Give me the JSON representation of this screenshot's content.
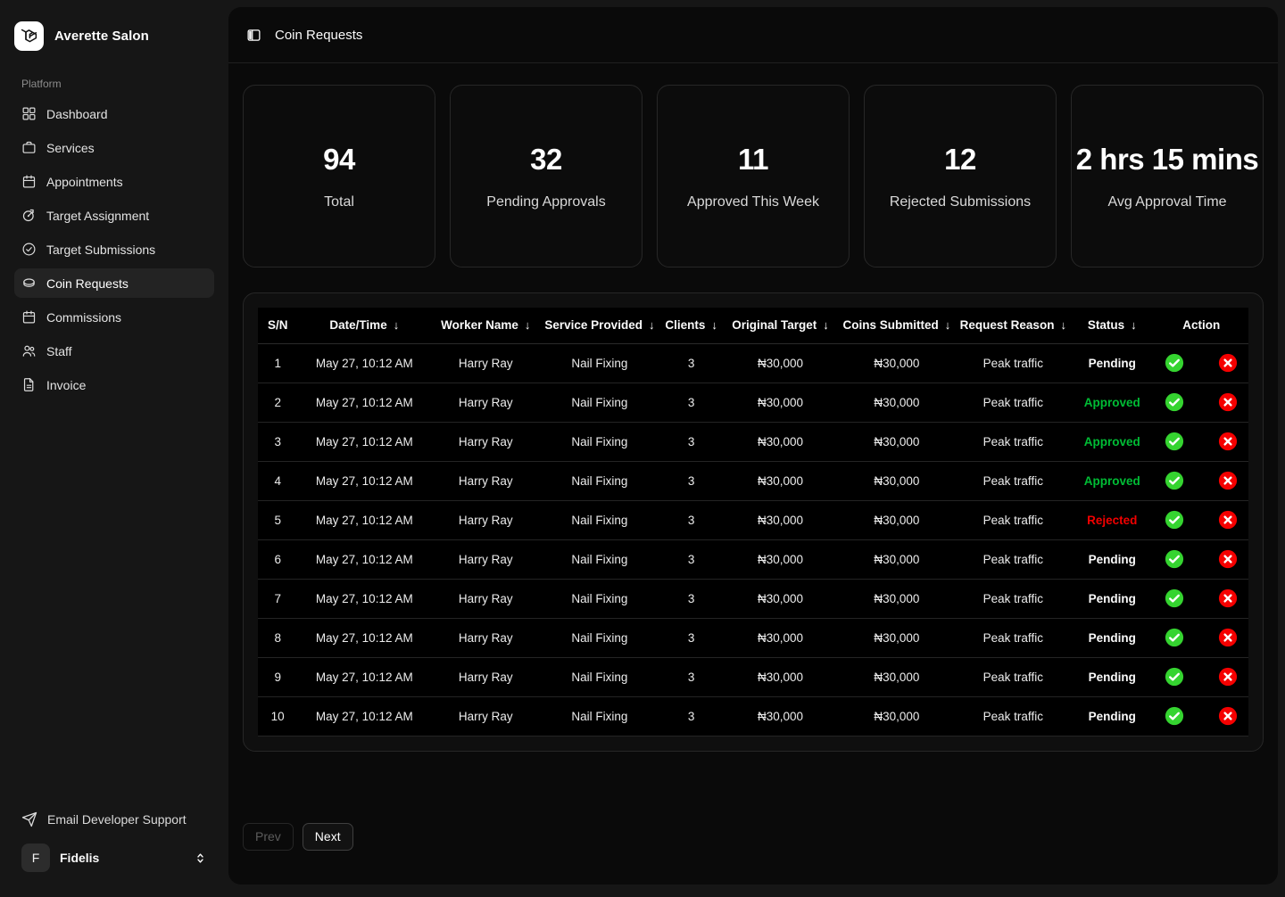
{
  "brand": {
    "name": "Averette Salon"
  },
  "sidebar": {
    "section_label": "Platform",
    "items": [
      {
        "label": "Dashboard",
        "icon": "grid-icon",
        "active": false
      },
      {
        "label": "Services",
        "icon": "briefcase-icon",
        "active": false
      },
      {
        "label": "Appointments",
        "icon": "calendar-icon",
        "active": false
      },
      {
        "label": "Target Assignment",
        "icon": "target-icon",
        "active": false
      },
      {
        "label": "Target Submissions",
        "icon": "circle-check-icon",
        "active": false
      },
      {
        "label": "Coin Requests",
        "icon": "coin-icon",
        "active": true
      },
      {
        "label": "Commissions",
        "icon": "calendar-icon",
        "active": false
      },
      {
        "label": "Staff",
        "icon": "users-icon",
        "active": false
      },
      {
        "label": "Invoice",
        "icon": "file-text-icon",
        "active": false
      }
    ],
    "footer": {
      "support_label": "Email Developer Support",
      "user": {
        "initial": "F",
        "name": "Fidelis"
      }
    }
  },
  "header": {
    "title": "Coin Requests"
  },
  "stats": [
    {
      "value": "94",
      "label": "Total"
    },
    {
      "value": "32",
      "label": "Pending Approvals"
    },
    {
      "value": "11",
      "label": "Approved This Week"
    },
    {
      "value": "12",
      "label": "Rejected Submissions"
    },
    {
      "value": "2 hrs 15 mins",
      "label": "Avg Approval Time"
    }
  ],
  "table": {
    "columns": [
      {
        "key": "sn",
        "label": "S/N",
        "sortable": false
      },
      {
        "key": "datetime",
        "label": "Date/Time",
        "sortable": true
      },
      {
        "key": "worker",
        "label": "Worker Name",
        "sortable": true
      },
      {
        "key": "service",
        "label": "Service Provided",
        "sortable": true
      },
      {
        "key": "clients",
        "label": "Clients",
        "sortable": true
      },
      {
        "key": "original",
        "label": "Original Target",
        "sortable": true
      },
      {
        "key": "coins",
        "label": "Coins Submitted",
        "sortable": true
      },
      {
        "key": "reason",
        "label": "Request Reason",
        "sortable": true
      },
      {
        "key": "status",
        "label": "Status",
        "sortable": true
      },
      {
        "key": "action",
        "label": "Action",
        "sortable": false
      }
    ],
    "rows": [
      {
        "sn": "1",
        "datetime": "May 27, 10:12 AM",
        "worker": "Harry Ray",
        "service": "Nail Fixing",
        "clients": "3",
        "original": "₦30,000",
        "coins": "₦30,000",
        "reason": "Peak traffic",
        "status": "Pending"
      },
      {
        "sn": "2",
        "datetime": "May 27, 10:12 AM",
        "worker": "Harry Ray",
        "service": "Nail Fixing",
        "clients": "3",
        "original": "₦30,000",
        "coins": "₦30,000",
        "reason": "Peak traffic",
        "status": "Approved"
      },
      {
        "sn": "3",
        "datetime": "May 27, 10:12 AM",
        "worker": "Harry Ray",
        "service": "Nail Fixing",
        "clients": "3",
        "original": "₦30,000",
        "coins": "₦30,000",
        "reason": "Peak traffic",
        "status": "Approved"
      },
      {
        "sn": "4",
        "datetime": "May 27, 10:12 AM",
        "worker": "Harry Ray",
        "service": "Nail Fixing",
        "clients": "3",
        "original": "₦30,000",
        "coins": "₦30,000",
        "reason": "Peak traffic",
        "status": "Approved"
      },
      {
        "sn": "5",
        "datetime": "May 27, 10:12 AM",
        "worker": "Harry Ray",
        "service": "Nail Fixing",
        "clients": "3",
        "original": "₦30,000",
        "coins": "₦30,000",
        "reason": "Peak traffic",
        "status": "Rejected"
      },
      {
        "sn": "6",
        "datetime": "May 27, 10:12 AM",
        "worker": "Harry Ray",
        "service": "Nail Fixing",
        "clients": "3",
        "original": "₦30,000",
        "coins": "₦30,000",
        "reason": "Peak traffic",
        "status": "Pending"
      },
      {
        "sn": "7",
        "datetime": "May 27, 10:12 AM",
        "worker": "Harry Ray",
        "service": "Nail Fixing",
        "clients": "3",
        "original": "₦30,000",
        "coins": "₦30,000",
        "reason": "Peak traffic",
        "status": "Pending"
      },
      {
        "sn": "8",
        "datetime": "May 27, 10:12 AM",
        "worker": "Harry Ray",
        "service": "Nail Fixing",
        "clients": "3",
        "original": "₦30,000",
        "coins": "₦30,000",
        "reason": "Peak traffic",
        "status": "Pending"
      },
      {
        "sn": "9",
        "datetime": "May 27, 10:12 AM",
        "worker": "Harry Ray",
        "service": "Nail Fixing",
        "clients": "3",
        "original": "₦30,000",
        "coins": "₦30,000",
        "reason": "Peak traffic",
        "status": "Pending"
      },
      {
        "sn": "10",
        "datetime": "May 27, 10:12 AM",
        "worker": "Harry Ray",
        "service": "Nail Fixing",
        "clients": "3",
        "original": "₦30,000",
        "coins": "₦30,000",
        "reason": "Peak traffic",
        "status": "Pending"
      }
    ]
  },
  "pagination": {
    "prev_label": "Prev",
    "next_label": "Next"
  },
  "colors": {
    "approve_icon": "#35d430",
    "reject_icon": "#f50000",
    "approved_text": "#00bd35",
    "rejected_text": "#f20000",
    "pending_text": "#fafafa"
  }
}
